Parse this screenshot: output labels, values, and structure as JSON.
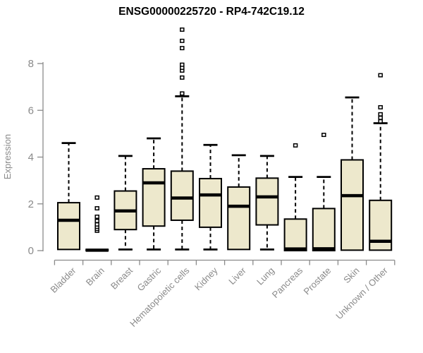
{
  "chart_data": {
    "type": "boxplot",
    "title": "ENSG00000225720 - RP4-742C19.12",
    "ylabel": "Expression",
    "xlabel": "",
    "yticks": [
      0,
      2,
      4,
      6,
      8
    ],
    "ylim": [
      0,
      9.6
    ],
    "grid": false,
    "legend": "none",
    "categories": [
      "Bladder",
      "Brain",
      "Breast",
      "Gastric",
      "Hematopoietic cells",
      "Kidney",
      "Liver",
      "Lung",
      "Pancreas",
      "Prostate",
      "Skin",
      "Unknown / Other"
    ],
    "series": [
      {
        "name": "Bladder",
        "low": 0.05,
        "q1": 0.05,
        "median": 1.3,
        "q3": 2.05,
        "high": 4.6,
        "outliers": []
      },
      {
        "name": "Brain",
        "low": 0.0,
        "q1": 0.0,
        "median": 0.02,
        "q3": 0.05,
        "high": 0.05,
        "outliers": [
          0.85,
          0.93,
          1.02,
          1.12,
          1.27,
          1.45,
          1.81,
          2.27
        ]
      },
      {
        "name": "Breast",
        "low": 0.05,
        "q1": 0.9,
        "median": 1.7,
        "q3": 2.55,
        "high": 4.05,
        "outliers": []
      },
      {
        "name": "Gastric",
        "low": 0.05,
        "q1": 1.05,
        "median": 2.9,
        "q3": 3.5,
        "high": 4.8,
        "outliers": []
      },
      {
        "name": "Hematopoietic cells",
        "low": 0.05,
        "q1": 1.3,
        "median": 2.25,
        "q3": 3.4,
        "high": 6.6,
        "outliers": [
          6.72,
          7.4,
          7.7,
          7.82,
          7.95,
          8.66,
          8.97,
          9.45
        ]
      },
      {
        "name": "Kidney",
        "low": 0.05,
        "q1": 1.0,
        "median": 2.38,
        "q3": 3.08,
        "high": 4.52,
        "outliers": []
      },
      {
        "name": "Liver",
        "low": 0.05,
        "q1": 0.05,
        "median": 1.9,
        "q3": 2.72,
        "high": 4.08,
        "outliers": []
      },
      {
        "name": "Lung",
        "low": 0.05,
        "q1": 1.1,
        "median": 2.3,
        "q3": 3.1,
        "high": 4.05,
        "outliers": []
      },
      {
        "name": "Pancreas",
        "low": 0.0,
        "q1": 0.0,
        "median": 0.07,
        "q3": 1.35,
        "high": 3.15,
        "outliers": [
          4.5
        ]
      },
      {
        "name": "Prostate",
        "low": 0.0,
        "q1": 0.0,
        "median": 0.08,
        "q3": 1.8,
        "high": 3.15,
        "outliers": [
          4.95
        ]
      },
      {
        "name": "Skin",
        "low": 0.02,
        "q1": 0.02,
        "median": 2.35,
        "q3": 3.88,
        "high": 6.55,
        "outliers": []
      },
      {
        "name": "Unknown / Other",
        "low": 0.02,
        "q1": 0.02,
        "median": 0.4,
        "q3": 2.15,
        "high": 5.45,
        "outliers": [
          5.53,
          5.68,
          5.83,
          6.13,
          7.5
        ]
      }
    ],
    "colors": {
      "box_fill": "#EDE8CC",
      "box_border": "#000000",
      "median": "#000000",
      "whisker": "#000000",
      "axis": "#8a8a8a",
      "title": "#000000",
      "background": "#ffffff"
    }
  }
}
